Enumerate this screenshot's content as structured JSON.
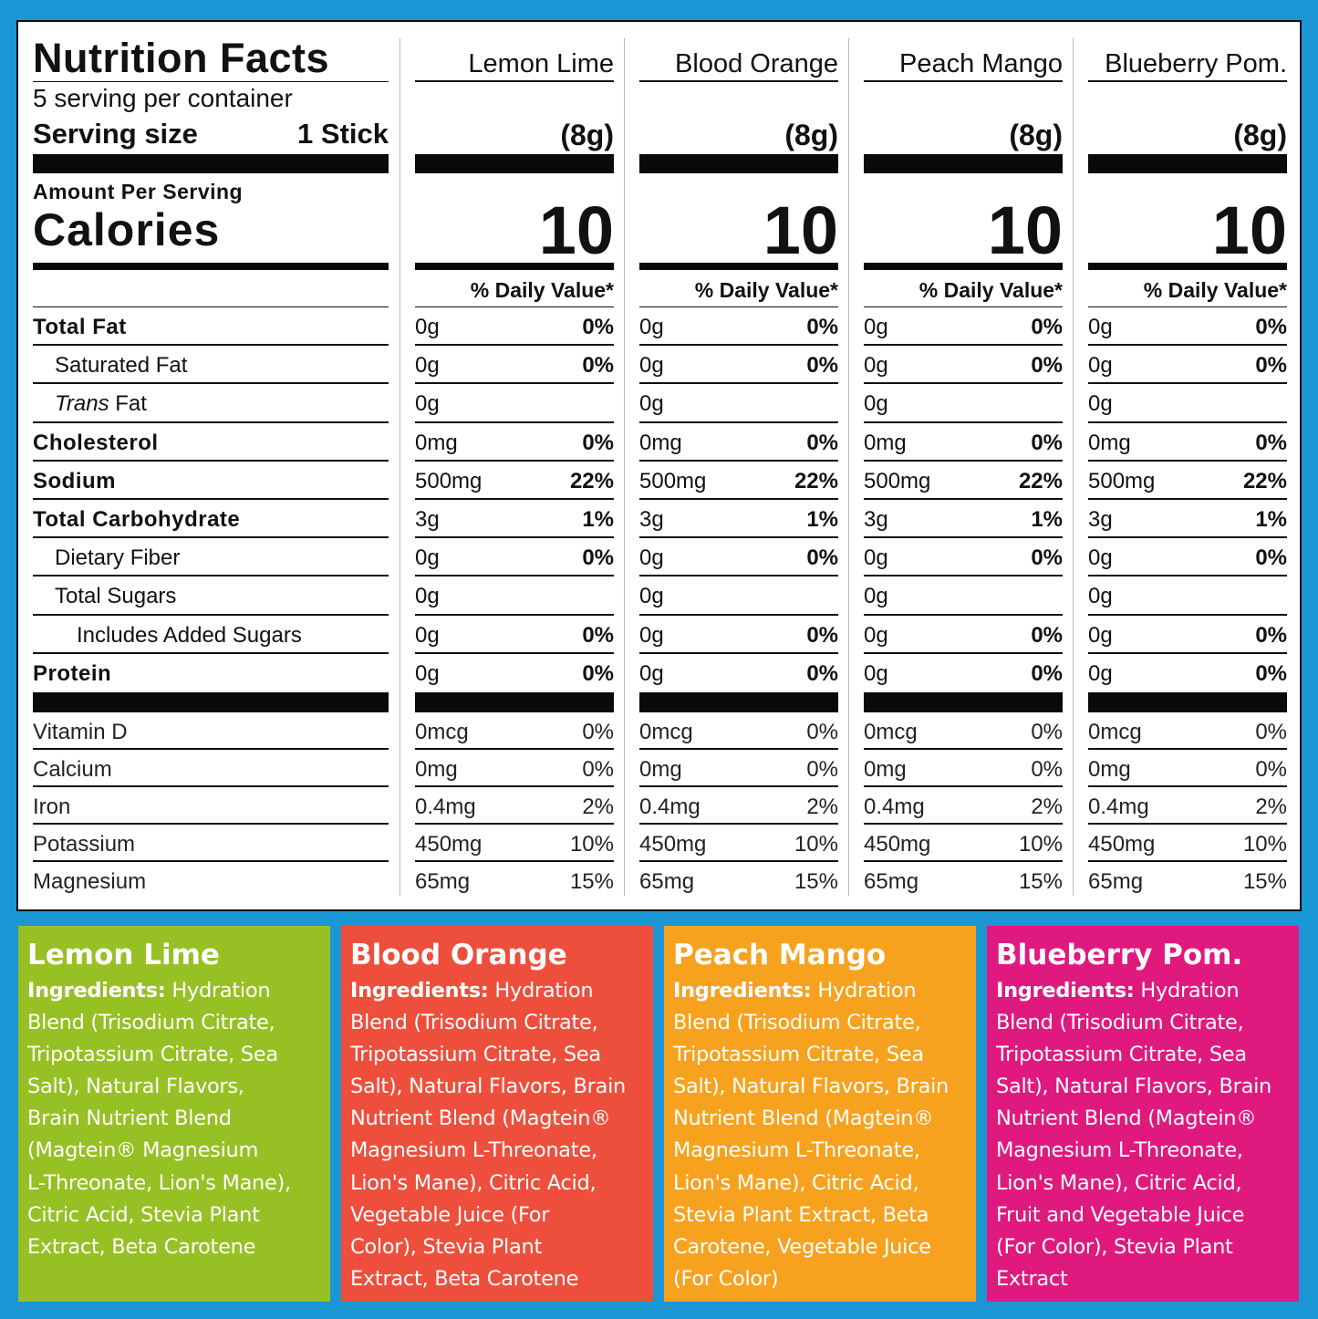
{
  "colors": {
    "background": "#1b96d4",
    "lemon_lime": "#97c024",
    "blood_orange": "#ee4f3d",
    "peach_mango": "#f7a21f",
    "blueberry_pom": "#e0197f"
  },
  "label": {
    "title": "Nutrition Facts",
    "servings": "5 serving per container",
    "serving_size_label": "Serving size",
    "serving_size_value": "1 Stick",
    "amount_per_serving": "Amount Per Serving",
    "calories": "Calories",
    "nutrients": [
      {
        "label": "Total Fat",
        "style": "b"
      },
      {
        "label": "Saturated Fat",
        "style": "i1"
      },
      {
        "label_italic": "Trans",
        "label": " Fat",
        "style": "i1"
      },
      {
        "label": "Cholesterol",
        "style": "b"
      },
      {
        "label": "Sodium",
        "style": "b"
      },
      {
        "label": "Total Carbohydrate",
        "style": "b"
      },
      {
        "label": "Dietary Fiber",
        "style": "i1"
      },
      {
        "label": "Total Sugars",
        "style": "i1"
      },
      {
        "label": "Includes Added Sugars",
        "style": "i2"
      },
      {
        "label": "Protein",
        "style": "b"
      }
    ],
    "vitamins": [
      "Vitamin D",
      "Calcium",
      "Iron",
      "Potassium",
      "Magnesium"
    ]
  },
  "flavors": [
    {
      "name": "Lemon Lime",
      "weight": "(8g)",
      "calories": "10",
      "dv_header": "% Daily Value*",
      "nutrients": [
        [
          "0g",
          "0%"
        ],
        [
          "0g",
          "0%"
        ],
        [
          "0g",
          ""
        ],
        [
          "0mg",
          "0%"
        ],
        [
          "500mg",
          "22%"
        ],
        [
          "3g",
          "1%"
        ],
        [
          "0g",
          "0%"
        ],
        [
          "0g",
          ""
        ],
        [
          "0g",
          "0%"
        ],
        [
          "0g",
          "0%"
        ]
      ],
      "vitamins": [
        [
          "0mcg",
          "0%"
        ],
        [
          "0mg",
          "0%"
        ],
        [
          "0.4mg",
          "2%"
        ],
        [
          "450mg",
          "10%"
        ],
        [
          "65mg",
          "15%"
        ]
      ]
    },
    {
      "name": "Blood Orange",
      "weight": "(8g)",
      "calories": "10",
      "dv_header": "% Daily Value*",
      "nutrients": [
        [
          "0g",
          "0%"
        ],
        [
          "0g",
          "0%"
        ],
        [
          "0g",
          ""
        ],
        [
          "0mg",
          "0%"
        ],
        [
          "500mg",
          "22%"
        ],
        [
          "3g",
          "1%"
        ],
        [
          "0g",
          "0%"
        ],
        [
          "0g",
          ""
        ],
        [
          "0g",
          "0%"
        ],
        [
          "0g",
          "0%"
        ]
      ],
      "vitamins": [
        [
          "0mcg",
          "0%"
        ],
        [
          "0mg",
          "0%"
        ],
        [
          "0.4mg",
          "2%"
        ],
        [
          "450mg",
          "10%"
        ],
        [
          "65mg",
          "15%"
        ]
      ]
    },
    {
      "name": "Peach Mango",
      "weight": "(8g)",
      "calories": "10",
      "dv_header": "% Daily Value*",
      "nutrients": [
        [
          "0g",
          "0%"
        ],
        [
          "0g",
          "0%"
        ],
        [
          "0g",
          ""
        ],
        [
          "0mg",
          "0%"
        ],
        [
          "500mg",
          "22%"
        ],
        [
          "3g",
          "1%"
        ],
        [
          "0g",
          "0%"
        ],
        [
          "0g",
          ""
        ],
        [
          "0g",
          "0%"
        ],
        [
          "0g",
          "0%"
        ]
      ],
      "vitamins": [
        [
          "0mcg",
          "0%"
        ],
        [
          "0mg",
          "0%"
        ],
        [
          "0.4mg",
          "2%"
        ],
        [
          "450mg",
          "10%"
        ],
        [
          "65mg",
          "15%"
        ]
      ]
    },
    {
      "name": "Blueberry Pom.",
      "weight": "(8g)",
      "calories": "10",
      "dv_header": "% Daily Value*",
      "nutrients": [
        [
          "0g",
          "0%"
        ],
        [
          "0g",
          "0%"
        ],
        [
          "0g",
          ""
        ],
        [
          "0mg",
          "0%"
        ],
        [
          "500mg",
          "22%"
        ],
        [
          "3g",
          "1%"
        ],
        [
          "0g",
          "0%"
        ],
        [
          "0g",
          ""
        ],
        [
          "0g",
          "0%"
        ],
        [
          "0g",
          "0%"
        ]
      ],
      "vitamins": [
        [
          "0mcg",
          "0%"
        ],
        [
          "0mg",
          "0%"
        ],
        [
          "0.4mg",
          "2%"
        ],
        [
          "450mg",
          "10%"
        ],
        [
          "65mg",
          "15%"
        ]
      ]
    }
  ],
  "ingredients": [
    {
      "title": "Lemon Lime",
      "label": "Ingredients:",
      "color": "#97c024",
      "lines": [
        " Hydration",
        "Blend (Trisodium Citrate,",
        "Tripotassium Citrate, Sea",
        "Salt), Natural Flavors,",
        "Brain Nutrient Blend",
        "(Magtein® Magnesium",
        "L-Threonate, Lion's Mane),",
        "Citric Acid, Stevia Plant",
        "Extract, Beta Carotene"
      ]
    },
    {
      "title": "Blood Orange",
      "label": "Ingredients:",
      "color": "#ee4f3d",
      "lines": [
        " Hydration",
        "Blend (Trisodium Citrate,",
        "Tripotassium Citrate, Sea",
        "Salt), Natural Flavors, Brain",
        "Nutrient Blend (Magtein®",
        "Magnesium L-Threonate,",
        "Lion's Mane), Citric Acid,",
        "Vegetable Juice (For",
        "Color), Stevia Plant",
        "Extract, Beta Carotene"
      ]
    },
    {
      "title": "Peach Mango",
      "label": "Ingredients:",
      "color": "#f7a21f",
      "lines": [
        " Hydration",
        "Blend (Trisodium Citrate,",
        "Tripotassium Citrate, Sea",
        "Salt), Natural Flavors, Brain",
        "Nutrient Blend (Magtein®",
        "Magnesium L-Threonate,",
        "Lion's Mane), Citric Acid,",
        "Stevia Plant Extract, Beta",
        "Carotene, Vegetable Juice",
        "(For Color)"
      ]
    },
    {
      "title": "Blueberry Pom.",
      "label": "Ingredients:",
      "color": "#e0197f",
      "lines": [
        " Hydration",
        "Blend (Trisodium Citrate,",
        "Tripotassium Citrate, Sea",
        "Salt), Natural Flavors, Brain",
        "Nutrient Blend (Magtein®",
        "Magnesium L-Threonate,",
        "Lion's Mane), Citric Acid,",
        "Fruit and Vegetable Juice",
        "(For Color), Stevia Plant",
        "Extract"
      ]
    }
  ]
}
